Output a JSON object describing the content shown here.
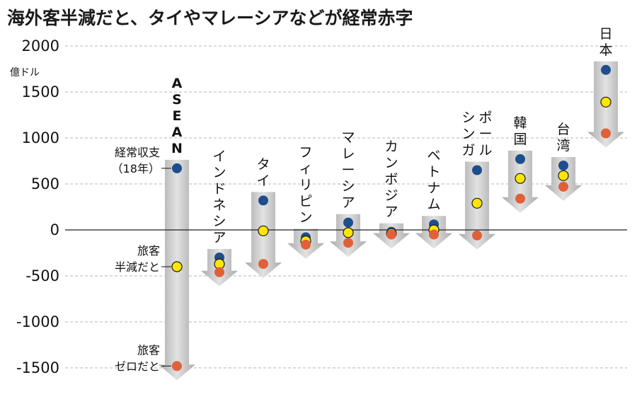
{
  "chart_data": {
    "type": "scatter",
    "title": "海外客半減だと、タイやマレーシアなどが経常赤字",
    "ylabel": "億ドル",
    "ylim": [
      -1600,
      2000
    ],
    "yticks": [
      2000,
      1500,
      1000,
      500,
      0,
      -500,
      -1000,
      -1500
    ],
    "grid": true,
    "categories": [
      "ASEAN",
      "インドネシア",
      "タイ",
      "フィリピン",
      "マレーシア",
      "カンボジア",
      "ベトナム",
      "シンガポール",
      "韓国",
      "台湾",
      "日本"
    ],
    "category_label_lines": [
      [
        "ASEAN"
      ],
      [
        "インドネシア"
      ],
      [
        "タイ"
      ],
      [
        "フィリピン"
      ],
      [
        "マレーシア"
      ],
      [
        "カンボジア"
      ],
      [
        "ベトナム"
      ],
      [
        "シンガ",
        "ポール"
      ],
      [
        "韓国"
      ],
      [
        "台湾"
      ],
      [
        "日本"
      ]
    ],
    "series": [
      {
        "name": "経常収支（18年）",
        "color": "#1f4e8c",
        "values": [
          670,
          -300,
          320,
          -80,
          80,
          -20,
          60,
          650,
          770,
          700,
          1740
        ]
      },
      {
        "name": "旅客半減だと",
        "color": "#ffe600",
        "values": [
          -400,
          -370,
          -10,
          -120,
          -30,
          -40,
          0,
          290,
          560,
          590,
          1390
        ]
      },
      {
        "name": "旅客ゼロだと",
        "color": "#e0603a",
        "values": [
          -1480,
          -460,
          -370,
          -160,
          -140,
          -50,
          -50,
          -60,
          340,
          470,
          1050
        ]
      }
    ],
    "annotations": [
      {
        "lines": [
          "経常収支",
          "（18年）"
        ],
        "series": 0
      },
      {
        "lines": [
          "旅客",
          "半減だと"
        ],
        "series": 1
      },
      {
        "lines": [
          "旅客",
          "ゼロだと"
        ],
        "series": 2
      }
    ],
    "colors": {
      "arrow": "#c4c4c4",
      "accent_label": "#c2562f",
      "grid": "#b5b5b5",
      "axis": "#222222"
    }
  }
}
